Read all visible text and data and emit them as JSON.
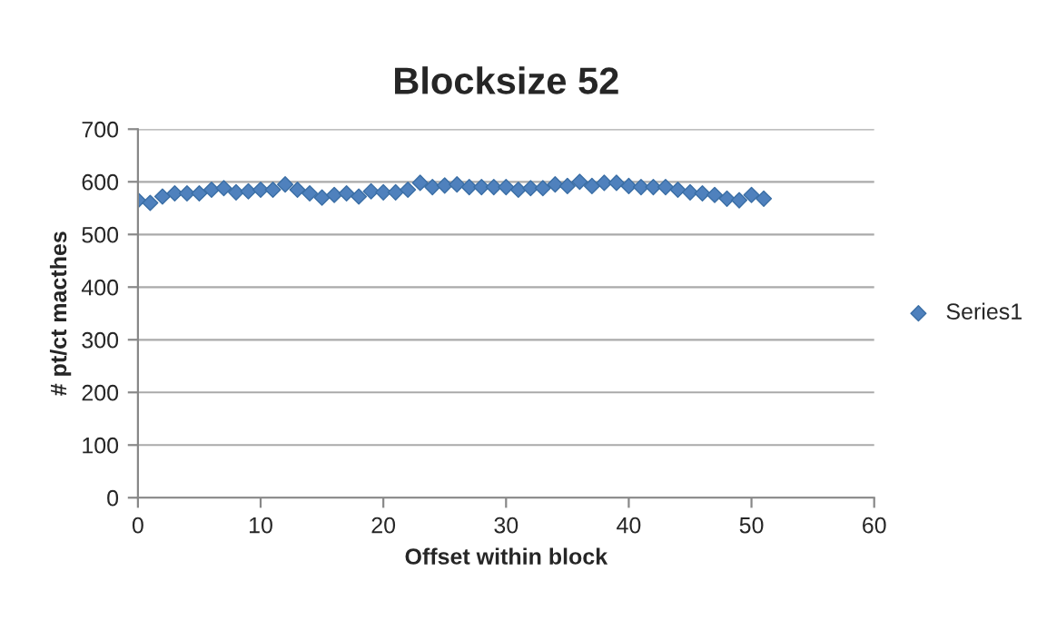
{
  "chart_data": {
    "type": "scatter",
    "title": "Blocksize 52",
    "xlabel": "Offset within block",
    "ylabel": "# pt/ct macthes",
    "x": [
      0,
      1,
      2,
      3,
      4,
      5,
      6,
      7,
      8,
      9,
      10,
      11,
      12,
      13,
      14,
      15,
      16,
      17,
      18,
      19,
      20,
      21,
      22,
      23,
      24,
      25,
      26,
      27,
      28,
      29,
      30,
      31,
      32,
      33,
      34,
      35,
      36,
      37,
      38,
      39,
      40,
      41,
      42,
      43,
      44,
      45,
      46,
      47,
      48,
      49,
      50,
      51
    ],
    "series": [
      {
        "name": "Series1",
        "color": "#4f81bd",
        "values": [
          565,
          560,
          572,
          578,
          578,
          578,
          585,
          588,
          580,
          582,
          585,
          585,
          595,
          585,
          578,
          570,
          575,
          578,
          572,
          582,
          580,
          580,
          585,
          598,
          590,
          593,
          595,
          590,
          590,
          590,
          590,
          585,
          588,
          588,
          595,
          592,
          600,
          592,
          598,
          598,
          592,
          590,
          590,
          590,
          585,
          580,
          578,
          575,
          568,
          565,
          575,
          568
        ]
      }
    ],
    "xlim": [
      0,
      60
    ],
    "xticks": [
      0,
      10,
      20,
      30,
      40,
      50,
      60
    ],
    "ylim": [
      0,
      700
    ],
    "yticks": [
      0,
      100,
      200,
      300,
      400,
      500,
      600,
      700
    ],
    "grid": "y",
    "legend": "right",
    "marker": "diamond"
  }
}
